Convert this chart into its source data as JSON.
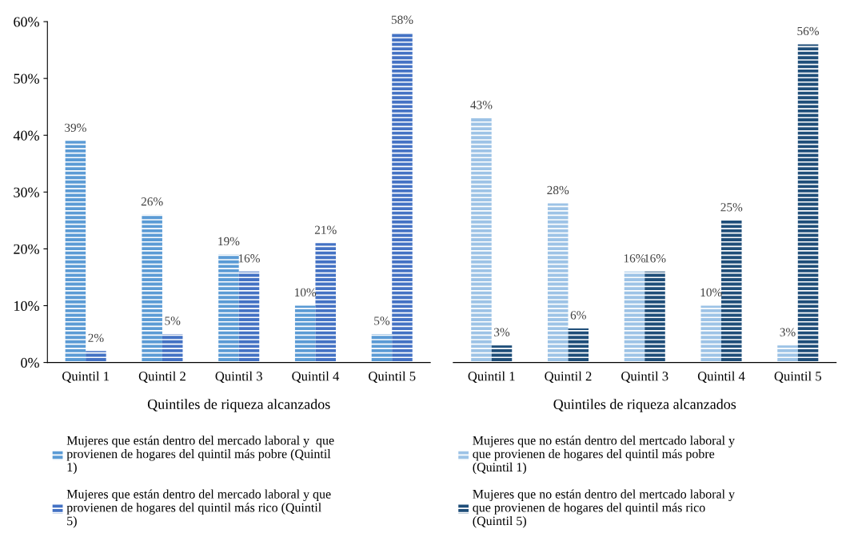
{
  "chart_data": [
    {
      "type": "bar",
      "categories": [
        "Quintil 1",
        "Quintil 2",
        "Quintil 3",
        "Quintil 4",
        "Quintil 5"
      ],
      "xlabel": "Quintiles de riqueza alcanzados",
      "ylim": [
        0,
        60
      ],
      "yticks": [
        {
          "value": 0,
          "label": "0%"
        },
        {
          "value": 10,
          "label": "10%"
        },
        {
          "value": 20,
          "label": "20%"
        },
        {
          "value": 30,
          "label": "30%"
        },
        {
          "value": 40,
          "label": "40%"
        },
        {
          "value": 50,
          "label": "50%"
        },
        {
          "value": 60,
          "label": "60%"
        }
      ],
      "legend": "bottom",
      "grid": false,
      "series": [
        {
          "name": "Mujeres que están dentro del mercado laboral y  que provienen de hogares del quintil más pobre (Quintil 1)",
          "color": "#5b9bd5",
          "values": [
            39,
            26,
            19,
            10,
            5
          ],
          "value_labels": [
            "39%",
            "26%",
            "19%",
            "10%",
            "5%"
          ]
        },
        {
          "name": "Mujeres que están dentro del mercado laboral y que provienen de hogares del quintil más rico (Quintil 5)",
          "color": "#4472c4",
          "values": [
            2,
            5,
            16,
            21,
            58
          ],
          "value_labels": [
            "2%",
            "5%",
            "16%",
            "21%",
            "58%"
          ]
        }
      ]
    },
    {
      "type": "bar",
      "categories": [
        "Quintil 1",
        "Quintil 2",
        "Quintil 3",
        "Quintil 4",
        "Quintil 5"
      ],
      "xlabel": "Quintiles de riqueza alcanzados",
      "ylim": [
        0,
        60
      ],
      "tick_labels": "x",
      "legend": "bottom",
      "grid": false,
      "series": [
        {
          "name": "Mujeres que no están dentro del mertcado laboral y que provienen de hogares del quintil más pobre (Quintil 1)",
          "color": "#9dc3e6",
          "values": [
            43,
            28,
            16,
            10,
            3
          ],
          "value_labels": [
            "43%",
            "28%",
            "16%",
            "10%",
            "3%"
          ]
        },
        {
          "name": "Mujeres que no están dentro del mertcado laboral y que provienen de hogares del quintil más rico (Quintil 5)",
          "color": "#1f4e79",
          "values": [
            3,
            6,
            16,
            25,
            56
          ],
          "value_labels": [
            "3%",
            "6%",
            "16%",
            "25%",
            "56%"
          ]
        }
      ]
    }
  ]
}
